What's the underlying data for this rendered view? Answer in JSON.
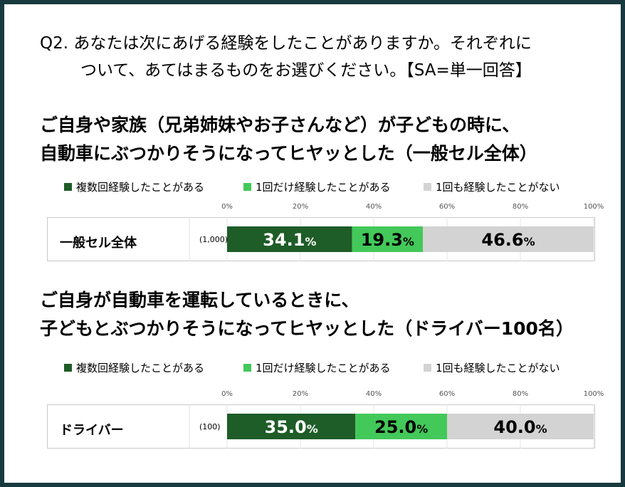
{
  "question": {
    "line1": "Q2. あなたは次にあげる経験をしたことがありますか。それぞれに",
    "line2": "ついて、あてはまるものをお選びください。【SA=単一回答】"
  },
  "colors": {
    "series1": "#1e5c28",
    "series2": "#43c85a",
    "series3": "#d3d3d3",
    "border": "#183a3f"
  },
  "chart_data": [
    {
      "type": "bar",
      "orientation": "horizontal-stacked-percent",
      "title_lines": [
        "ご自身や家族（兄弟姉妹やお子さんなど）が子どもの時に、",
        "自動車にぶつかりそうになってヒヤッとした（一般セル全体）"
      ],
      "legend": [
        "複数回経験したことがある",
        "1回だけ経験したことがある",
        "1回も経験したことがない"
      ],
      "ticks": [
        "0%",
        "20%",
        "40%",
        "60%",
        "80%",
        "100%"
      ],
      "xlim": [
        0,
        100
      ],
      "categories": [
        "一般セル全体"
      ],
      "n": "(1,000)",
      "series": [
        {
          "name": "複数回経験したことがある",
          "values": [
            34.1
          ],
          "label": "34.1"
        },
        {
          "name": "1回だけ経験したことがある",
          "values": [
            19.3
          ],
          "label": "19.3"
        },
        {
          "name": "1回も経験したことがない",
          "values": [
            46.6
          ],
          "label": "46.6"
        }
      ],
      "unit": "%"
    },
    {
      "type": "bar",
      "orientation": "horizontal-stacked-percent",
      "title_lines": [
        "ご自身が自動車を運転しているときに、",
        "子どもとぶつかりそうになってヒヤッとした（ドライバー100名）"
      ],
      "legend": [
        "複数回経験したことがある",
        "1回だけ経験したことがある",
        "1回も経験したことがない"
      ],
      "ticks": [
        "0%",
        "20%",
        "40%",
        "60%",
        "80%",
        "100%"
      ],
      "xlim": [
        0,
        100
      ],
      "categories": [
        "ドライバー"
      ],
      "n": "(100)",
      "series": [
        {
          "name": "複数回経験したことがある",
          "values": [
            35.0
          ],
          "label": "35.0"
        },
        {
          "name": "1回だけ経験したことがある",
          "values": [
            25.0
          ],
          "label": "25.0"
        },
        {
          "name": "1回も経験したことがない",
          "values": [
            40.0
          ],
          "label": "40.0"
        }
      ],
      "unit": "%"
    }
  ]
}
